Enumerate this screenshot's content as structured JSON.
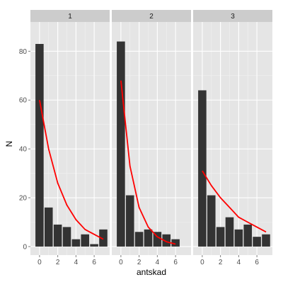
{
  "chart_data": {
    "type": "bar",
    "xlabel": "antskad",
    "ylabel": "N",
    "xlim": [
      -1,
      7.7
    ],
    "ylim": [
      -3.5,
      92
    ],
    "x_ticks": [
      "0",
      "2",
      "4",
      "6"
    ],
    "y_ticks": [
      "0",
      "20",
      "40",
      "60",
      "80"
    ],
    "grid": true,
    "colors": {
      "panel_background": "#e5e5e5",
      "grid_major": "#ffffff",
      "grid_minor": "#f2f2f2",
      "bar_fill": "#333333",
      "fit_line": "#ff0000",
      "strip_background": "#cccccc"
    },
    "facets": [
      {
        "label": "1",
        "bars": [
          {
            "x": 0,
            "y": 83
          },
          {
            "x": 1,
            "y": 16
          },
          {
            "x": 2,
            "y": 9
          },
          {
            "x": 3,
            "y": 8
          },
          {
            "x": 4,
            "y": 3
          },
          {
            "x": 5,
            "y": 5
          },
          {
            "x": 6,
            "y": 1
          },
          {
            "x": 7,
            "y": 7
          }
        ],
        "fit": [
          {
            "x": 0,
            "y": 60
          },
          {
            "x": 1,
            "y": 40
          },
          {
            "x": 2,
            "y": 26
          },
          {
            "x": 3,
            "y": 17
          },
          {
            "x": 4,
            "y": 11
          },
          {
            "x": 5,
            "y": 7
          },
          {
            "x": 6,
            "y": 5
          },
          {
            "x": 7,
            "y": 3
          }
        ]
      },
      {
        "label": "2",
        "bars": [
          {
            "x": 0,
            "y": 84
          },
          {
            "x": 1,
            "y": 21
          },
          {
            "x": 2,
            "y": 6
          },
          {
            "x": 3,
            "y": 7
          },
          {
            "x": 4,
            "y": 6
          },
          {
            "x": 5,
            "y": 5
          },
          {
            "x": 6,
            "y": 3
          }
        ],
        "fit": [
          {
            "x": 0,
            "y": 68
          },
          {
            "x": 1,
            "y": 33
          },
          {
            "x": 2,
            "y": 16
          },
          {
            "x": 3,
            "y": 8
          },
          {
            "x": 4,
            "y": 4
          },
          {
            "x": 5,
            "y": 2
          },
          {
            "x": 6,
            "y": 1
          }
        ]
      },
      {
        "label": "3",
        "bars": [
          {
            "x": 0,
            "y": 64
          },
          {
            "x": 1,
            "y": 21
          },
          {
            "x": 2,
            "y": 8
          },
          {
            "x": 3,
            "y": 12
          },
          {
            "x": 4,
            "y": 7
          },
          {
            "x": 5,
            "y": 9
          },
          {
            "x": 6,
            "y": 4
          },
          {
            "x": 7,
            "y": 5
          }
        ],
        "fit": [
          {
            "x": 0,
            "y": 31
          },
          {
            "x": 1,
            "y": 25
          },
          {
            "x": 2,
            "y": 20
          },
          {
            "x": 3,
            "y": 16
          },
          {
            "x": 4,
            "y": 12
          },
          {
            "x": 5,
            "y": 10
          },
          {
            "x": 6,
            "y": 8
          },
          {
            "x": 7,
            "y": 6
          }
        ]
      }
    ]
  }
}
